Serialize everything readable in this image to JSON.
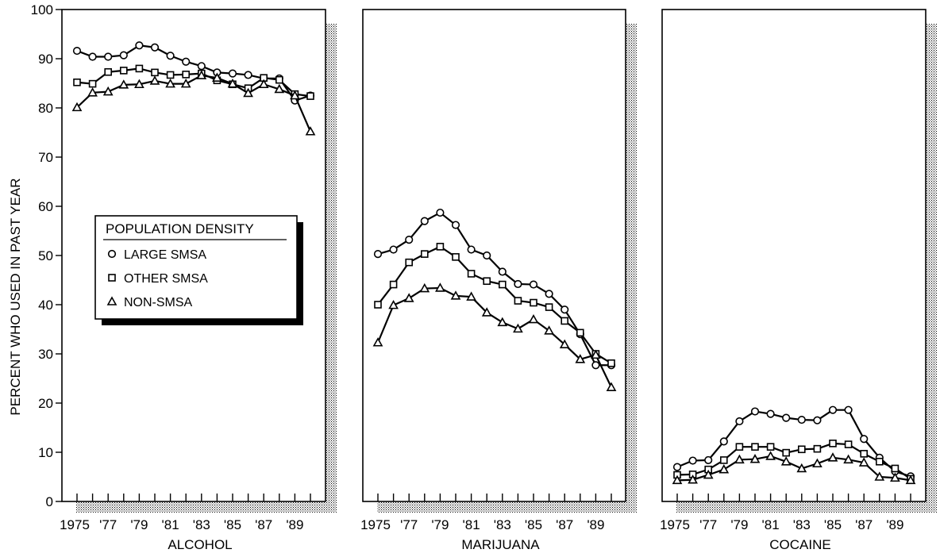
{
  "chart_data": {
    "type": "line",
    "ylabel": "PERCENT WHO USED IN PAST YEAR",
    "ylim": [
      0,
      100
    ],
    "yticks": [
      0,
      10,
      20,
      30,
      40,
      50,
      60,
      70,
      80,
      90,
      100
    ],
    "x": [
      1975,
      1976,
      1977,
      1978,
      1979,
      1980,
      1981,
      1982,
      1983,
      1984,
      1985,
      1986,
      1987,
      1988,
      1989,
      1990
    ],
    "xtick_labels": [
      "1975",
      "'77",
      "'79",
      "'81",
      "'83",
      "'85",
      "'87",
      "'89"
    ],
    "xtick_years": [
      1975,
      1977,
      1979,
      1981,
      1983,
      1985,
      1987,
      1989
    ],
    "legend": {
      "title": "POPULATION DENSITY",
      "position": "left, inside first panel",
      "entries": [
        {
          "name": "LARGE SMSA",
          "marker": "circle"
        },
        {
          "name": "OTHER SMSA",
          "marker": "square"
        },
        {
          "name": "NON-SMSA",
          "marker": "triangle"
        }
      ]
    },
    "panels": [
      {
        "xlabel": "ALCOHOL",
        "series": [
          {
            "name": "LARGE SMSA",
            "marker": "circle",
            "values": [
              91.6,
              90.4,
              90.4,
              90.7,
              92.7,
              92.3,
              90.6,
              89.4,
              88.5,
              87.2,
              87.0,
              86.7,
              86.0,
              86.0,
              81.5,
              82.5
            ]
          },
          {
            "name": "OTHER SMSA",
            "marker": "square",
            "values": [
              85.2,
              84.9,
              87.3,
              87.6,
              88.0,
              87.2,
              86.7,
              86.8,
              87.0,
              85.6,
              84.8,
              84.0,
              86.1,
              85.7,
              82.8,
              82.4
            ]
          },
          {
            "name": "NON-SMSA",
            "marker": "triangle",
            "values": [
              80.1,
              83.1,
              83.3,
              84.7,
              84.8,
              85.5,
              84.9,
              84.9,
              86.6,
              86.1,
              84.9,
              83.0,
              84.8,
              83.8,
              82.5,
              75.2
            ]
          }
        ]
      },
      {
        "xlabel": "MARIJUANA",
        "series": [
          {
            "name": "LARGE SMSA",
            "marker": "circle",
            "values": [
              50.3,
              51.2,
              53.2,
              57.0,
              58.7,
              56.2,
              51.2,
              50.0,
              46.7,
              44.2,
              44.1,
              42.2,
              39.0,
              34.0,
              27.7,
              27.7
            ]
          },
          {
            "name": "OTHER SMSA",
            "marker": "square",
            "values": [
              40.0,
              44.1,
              48.6,
              50.3,
              51.8,
              49.7,
              46.3,
              44.8,
              44.1,
              40.8,
              40.4,
              39.5,
              36.7,
              34.3,
              30.0,
              28.1
            ]
          },
          {
            "name": "NON-SMSA",
            "marker": "triangle",
            "values": [
              32.3,
              39.9,
              41.3,
              43.3,
              43.4,
              41.8,
              41.6,
              38.4,
              36.4,
              35.1,
              37.0,
              34.7,
              31.9,
              28.9,
              29.8,
              23.2
            ]
          }
        ]
      },
      {
        "xlabel": "COCAINE",
        "series": [
          {
            "name": "LARGE SMSA",
            "marker": "circle",
            "values": [
              7.0,
              8.3,
              8.4,
              12.2,
              16.3,
              18.3,
              17.8,
              17.0,
              16.6,
              16.5,
              18.6,
              18.6,
              12.7,
              8.9,
              6.1,
              5.1
            ]
          },
          {
            "name": "OTHER SMSA",
            "marker": "square",
            "values": [
              5.4,
              5.5,
              6.5,
              8.4,
              11.1,
              11.1,
              11.1,
              9.9,
              10.6,
              10.7,
              11.8,
              11.6,
              9.7,
              8.1,
              6.7,
              4.6
            ]
          },
          {
            "name": "NON-SMSA",
            "marker": "triangle",
            "values": [
              4.3,
              4.4,
              5.4,
              6.5,
              8.5,
              8.6,
              9.2,
              8.1,
              6.7,
              7.7,
              8.9,
              8.5,
              7.9,
              5.0,
              4.8,
              4.3
            ]
          }
        ]
      }
    ]
  }
}
